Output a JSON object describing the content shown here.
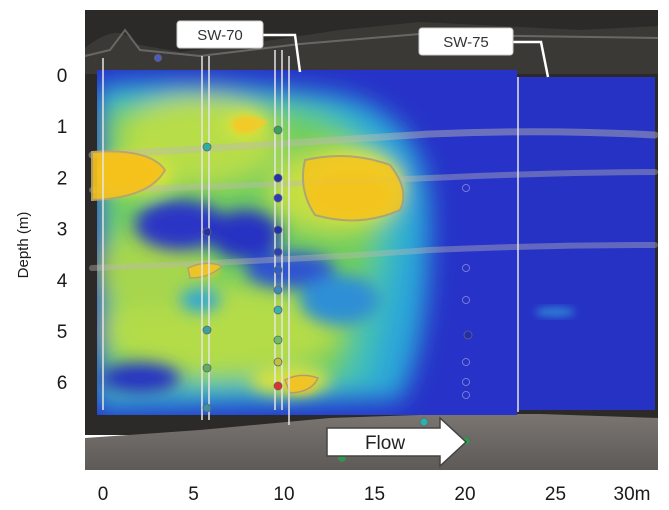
{
  "chart_data": {
    "type": "heatmap",
    "title": "",
    "xlabel": "",
    "ylabel": "Depth (m)",
    "x_ticks": [
      {
        "value": 0,
        "label": "0"
      },
      {
        "value": 5,
        "label": "5"
      },
      {
        "value": 10,
        "label": "10"
      },
      {
        "value": 15,
        "label": "15"
      },
      {
        "value": 20,
        "label": "20"
      },
      {
        "value": 25,
        "label": "25"
      },
      {
        "value": 30,
        "label": "30m"
      }
    ],
    "y_ticks": [
      {
        "value": 0,
        "label": "0"
      },
      {
        "value": 1,
        "label": "1"
      },
      {
        "value": 2,
        "label": "2"
      },
      {
        "value": 3,
        "label": "3"
      },
      {
        "value": 4,
        "label": "4"
      },
      {
        "value": 5,
        "label": "5"
      },
      {
        "value": 6,
        "label": "6"
      }
    ],
    "xlim": [
      -0.5,
      30.5
    ],
    "ylim": [
      -1.2,
      7.9
    ],
    "y_inverted": true,
    "annotations": {
      "wells": [
        {
          "label": "SW-70",
          "x": 10.5
        },
        {
          "label": "SW-75",
          "x": 25.3
        }
      ],
      "arrow": {
        "label": "Flow",
        "direction": "right",
        "x_start": 12,
        "x_end": 20.3,
        "depth": 7.2
      }
    },
    "colors": {
      "low": "#1f2fc8",
      "mid": "#2fb8c8",
      "mid_high": "#54c85a",
      "high": "#e6e63c",
      "peak": "#f2c018",
      "ground": "#6f6a66",
      "sky": "#2c2a28"
    }
  }
}
